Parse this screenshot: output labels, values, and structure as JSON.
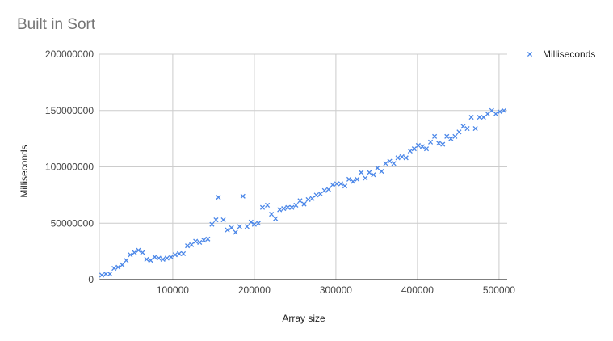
{
  "chart_data": {
    "type": "scatter",
    "title": "Built in Sort",
    "xlabel": "Array size",
    "ylabel": "Milliseconds",
    "xlim": [
      10000,
      510000
    ],
    "ylim": [
      0,
      200000000
    ],
    "x_ticks": [
      100000,
      200000,
      300000,
      400000,
      500000
    ],
    "y_ticks": [
      0,
      50000000,
      100000000,
      150000000,
      200000000
    ],
    "x_tick_labels": [
      "100000",
      "200000",
      "300000",
      "400000",
      "500000"
    ],
    "y_tick_labels": [
      "0",
      "50000000",
      "100000000",
      "150000000",
      "200000000"
    ],
    "grid": true,
    "legend_position": "top-right",
    "marker_color": "#4a86e8",
    "series": [
      {
        "name": "Milliseconds",
        "x": [
          13000,
          18000,
          23000,
          28000,
          33000,
          38000,
          43000,
          48000,
          53000,
          58000,
          63000,
          68000,
          73000,
          78000,
          83000,
          88000,
          93000,
          98000,
          103000,
          108000,
          113000,
          118000,
          123000,
          128000,
          133000,
          138000,
          143000,
          148000,
          153000,
          156000,
          162000,
          167000,
          172000,
          177000,
          182000,
          186000,
          191000,
          196000,
          200000,
          205000,
          210000,
          216000,
          221000,
          226000,
          231000,
          236000,
          241000,
          246000,
          251000,
          256000,
          261000,
          266000,
          271000,
          276000,
          281000,
          286000,
          291000,
          296000,
          301000,
          306000,
          311000,
          316000,
          321000,
          326000,
          331000,
          336000,
          341000,
          346000,
          351000,
          356000,
          361000,
          366000,
          371000,
          376000,
          381000,
          386000,
          391000,
          396000,
          401000,
          406000,
          411000,
          416000,
          421000,
          426000,
          431000,
          436000,
          441000,
          446000,
          451000,
          456000,
          461000,
          466000,
          471000,
          476000,
          481000,
          486000,
          491000,
          496000,
          501000,
          506000
        ],
        "y": [
          4000000,
          5000000,
          5000000,
          10000000,
          11000000,
          13000000,
          17000000,
          22000000,
          24000000,
          26000000,
          24000000,
          18000000,
          17000000,
          20000000,
          19000000,
          18000000,
          19000000,
          20000000,
          22000000,
          23000000,
          23000000,
          30000000,
          31000000,
          34000000,
          33000000,
          35000000,
          36000000,
          49000000,
          53000000,
          73000000,
          53000000,
          44000000,
          46000000,
          42000000,
          47000000,
          74000000,
          47000000,
          51000000,
          49000000,
          50000000,
          64000000,
          66000000,
          58000000,
          54000000,
          62000000,
          63000000,
          64000000,
          64000000,
          66000000,
          70000000,
          67000000,
          71000000,
          72000000,
          75000000,
          76000000,
          79000000,
          80000000,
          84000000,
          85000000,
          85000000,
          83000000,
          89000000,
          87000000,
          89000000,
          95000000,
          90000000,
          95000000,
          93000000,
          99000000,
          96000000,
          103000000,
          105000000,
          103000000,
          108000000,
          109000000,
          108000000,
          114000000,
          116000000,
          119000000,
          118000000,
          116000000,
          122000000,
          127000000,
          121000000,
          120000000,
          127000000,
          125000000,
          127000000,
          131000000,
          136000000,
          134000000,
          144000000,
          134000000,
          144000000,
          144000000,
          147000000,
          150000000,
          147000000,
          149000000,
          150000000
        ]
      }
    ]
  }
}
